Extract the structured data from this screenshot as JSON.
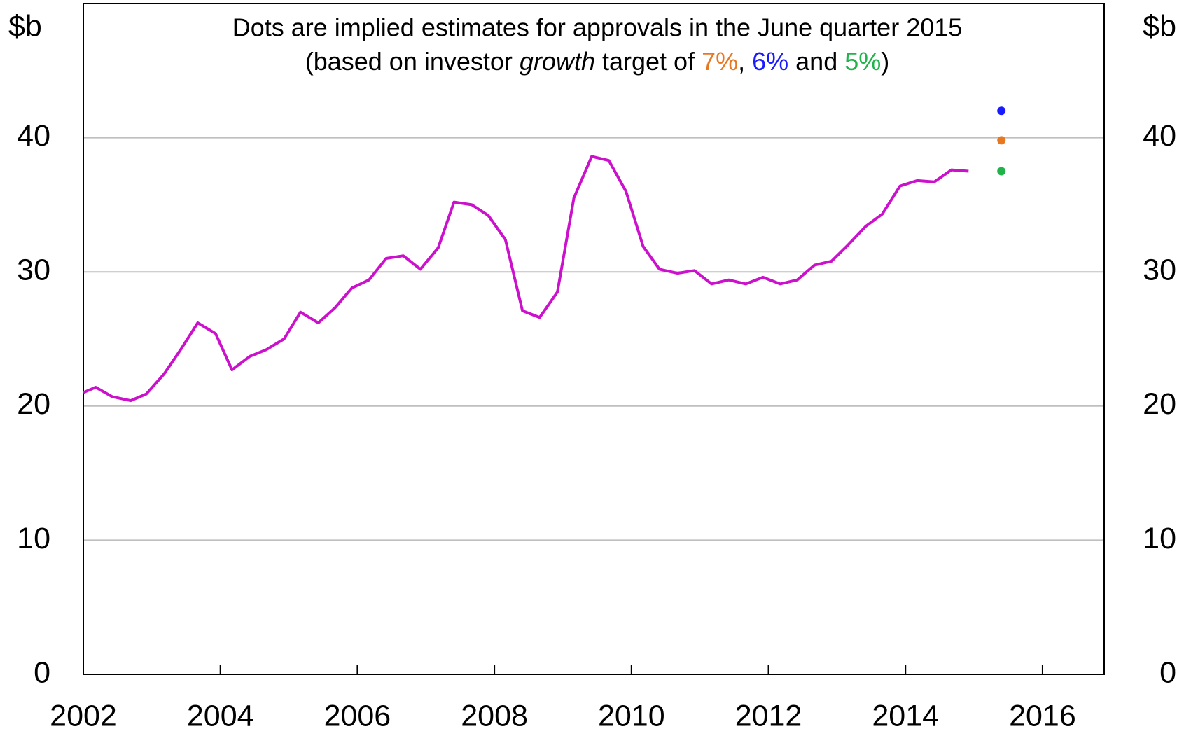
{
  "chart_data": {
    "type": "line",
    "title": "Dots are implied estimates for approvals in the June quarter 2015",
    "subtitle": [
      {
        "text": "(based on investor "
      },
      {
        "text": "growth",
        "style": "italic"
      },
      {
        "text": " target of "
      },
      {
        "text": "7%",
        "color": "#e87722"
      },
      {
        "text": ", "
      },
      {
        "text": "6%",
        "color": "#1a1aff"
      },
      {
        "text": " and "
      },
      {
        "text": "5%",
        "color": "#1fb34a"
      },
      {
        "text": ")"
      }
    ],
    "y_label": "$b",
    "y2_label": "$b",
    "xlim": [
      2002,
      2016.9
    ],
    "xticks": [
      2002,
      2004,
      2006,
      2008,
      2010,
      2012,
      2014,
      2016
    ],
    "ylim": [
      0,
      50
    ],
    "yticks": [
      0,
      10,
      20,
      30,
      40
    ],
    "y2lim": [
      0,
      50
    ],
    "y2ticks": [
      0,
      10,
      20,
      30,
      40
    ],
    "grid": true,
    "series": [
      {
        "type": "line",
        "color": "#cc11cc",
        "x": [
          2002.0,
          2002.18,
          2002.42,
          2002.69,
          2002.92,
          2003.18,
          2003.42,
          2003.67,
          2003.93,
          2004.17,
          2004.43,
          2004.67,
          2004.93,
          2005.17,
          2005.43,
          2005.67,
          2005.92,
          2006.17,
          2006.42,
          2006.67,
          2006.92,
          2007.18,
          2007.41,
          2007.67,
          2007.91,
          2008.16,
          2008.41,
          2008.66,
          2008.92,
          2009.16,
          2009.42,
          2009.67,
          2009.92,
          2010.17,
          2010.41,
          2010.67,
          2010.92,
          2011.17,
          2011.42,
          2011.67,
          2011.92,
          2012.17,
          2012.42,
          2012.67,
          2012.92,
          2013.16,
          2013.42,
          2013.66,
          2013.92,
          2014.17,
          2014.42,
          2014.67,
          2014.92
        ],
        "values": [
          21,
          21.4,
          20.7,
          20.4,
          20.9,
          22.4,
          24.2,
          26.2,
          25.4,
          22.7,
          23.7,
          24.2,
          25,
          27,
          26.2,
          27.3,
          28.8,
          29.4,
          31,
          31.2,
          30.2,
          31.8,
          35.2,
          35,
          34.2,
          32.4,
          27.1,
          26.6,
          28.5,
          35.5,
          38.6,
          38.3,
          36,
          31.9,
          30.2,
          29.9,
          30.1,
          29.1,
          29.4,
          29.1,
          29.6,
          29.1,
          29.4,
          30.5,
          30.8,
          32,
          33.4,
          34.3,
          36.4,
          36.8,
          36.7,
          37.6,
          37.5
        ]
      },
      {
        "type": "scatter",
        "color": "#1a1aff",
        "x": [
          2015.4
        ],
        "values": [
          42
        ]
      },
      {
        "type": "scatter",
        "color": "#e87722",
        "x": [
          2015.4
        ],
        "values": [
          39.8
        ]
      },
      {
        "type": "scatter",
        "color": "#1fb34a",
        "x": [
          2015.4
        ],
        "values": [
          37.5
        ]
      }
    ]
  }
}
